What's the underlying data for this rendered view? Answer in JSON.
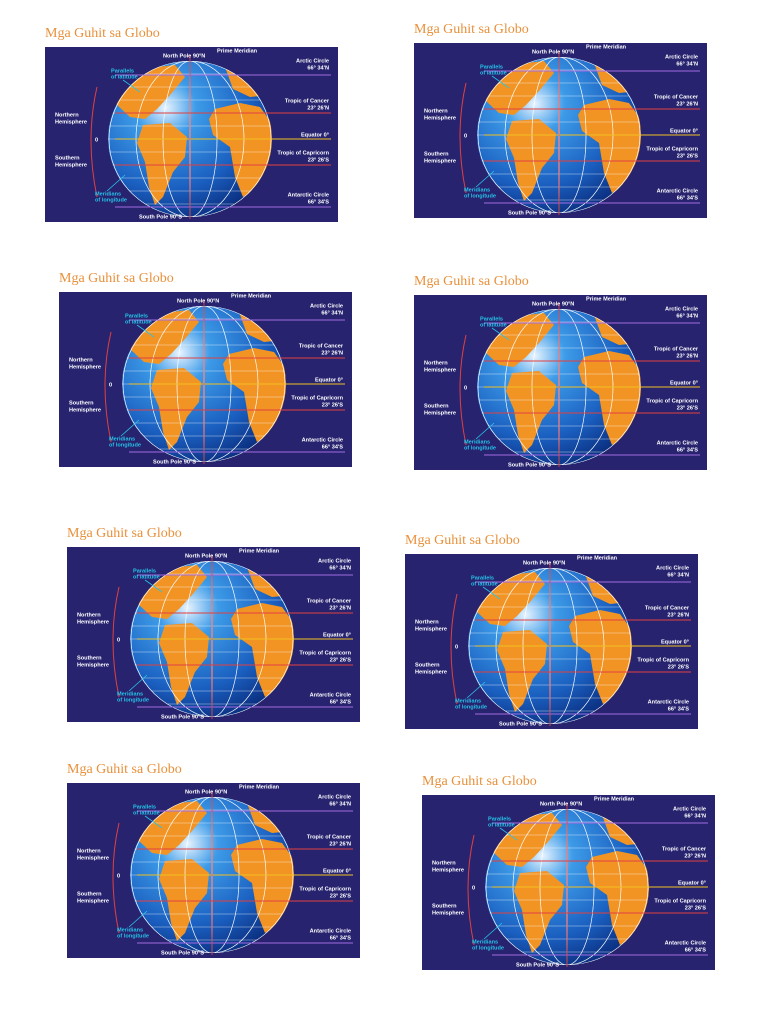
{
  "cards": [
    {
      "title": "Mga Guhit sa Globo",
      "labels": {
        "np": "North Pole 90°N",
        "pm": "Prime Meridian",
        "ac": "Arctic Circle",
        "acv": "66° 34'N",
        "par1": "Parallels",
        "par2": "of latitude",
        "tc": "Tropic of Cancer",
        "tcv": "23° 26'N",
        "nh1": "Northern",
        "nh2": "Hemisphere",
        "zero": "0",
        "eq": "Equator 0°",
        "sh1": "Southern",
        "sh2": "Hemisphere",
        "tcp": "Tropic of Capricorn",
        "tcpv": "23° 26'S",
        "mer1": "Meridians",
        "mer2": "of longitude",
        "anc": "Antarctic Circle",
        "ancv": "66° 34'S",
        "sp": "South Pole 90°S"
      }
    },
    {
      "title": "Mga Guhit sa Globo",
      "labels": {
        "np": "North Pole 90°N",
        "pm": "Prime Meridian",
        "ac": "Arctic Circle",
        "acv": "66° 34'N",
        "par1": "Parallels",
        "par2": "of latitude",
        "tc": "Tropic of Cancer",
        "tcv": "23° 26'N",
        "nh1": "Northern",
        "nh2": "Hemisphere",
        "zero": "0",
        "eq": "Equator 0°",
        "sh1": "Southern",
        "sh2": "Hemisphere",
        "tcp": "Tropic of Capricorn",
        "tcpv": "23° 26'S",
        "mer1": "Meridians",
        "mer2": "of longitude",
        "anc": "Antarctic Circle",
        "ancv": "66° 34'S",
        "sp": "South Pole 90°S"
      }
    },
    {
      "title": "Mga Guhit sa Globo",
      "labels": {
        "np": "North Pole 90°N",
        "pm": "Prime Meridian",
        "ac": "Arctic Circle",
        "acv": "66° 34'N",
        "par1": "Parallels",
        "par2": "of latitude",
        "tc": "Tropic of Cancer",
        "tcv": "23° 26'N",
        "nh1": "Northern",
        "nh2": "Hemisphere",
        "zero": "0",
        "eq": "Equator 0°",
        "sh1": "Southern",
        "sh2": "Hemisphere",
        "tcp": "Tropic of Capricorn",
        "tcpv": "23° 26'S",
        "mer1": "Meridians",
        "mer2": "of longitude",
        "anc": "Antarctic Circle",
        "ancv": "66° 34'S",
        "sp": "South Pole 90°S"
      }
    },
    {
      "title": "Mga Guhit sa Globo",
      "labels": {
        "np": "North Pole 90°N",
        "pm": "Prime Meridian",
        "ac": "Arctic Circle",
        "acv": "66° 34'N",
        "par1": "Parallels",
        "par2": "of latitude",
        "tc": "Tropic of Cancer",
        "tcv": "23° 26'N",
        "nh1": "Northern",
        "nh2": "Hemisphere",
        "zero": "0",
        "eq": "Equator 0°",
        "sh1": "Southern",
        "sh2": "Hemisphere",
        "tcp": "Tropic of Capricorn",
        "tcpv": "23° 26'S",
        "mer1": "Meridians",
        "mer2": "of longitude",
        "anc": "Antarctic Circle",
        "ancv": "66° 34'S",
        "sp": "South Pole 90°S"
      }
    },
    {
      "title": "Mga Guhit sa Globo",
      "labels": {
        "np": "North Pole 90°N",
        "pm": "Prime Meridian",
        "ac": "Arctic Circle",
        "acv": "66° 34'N",
        "par1": "Parallels",
        "par2": "of latitude",
        "tc": "Tropic of Cancer",
        "tcv": "23° 26'N",
        "nh1": "Northern",
        "nh2": "Hemisphere",
        "zero": "0",
        "eq": "Equator 0°",
        "sh1": "Southern",
        "sh2": "Hemisphere",
        "tcp": "Tropic of Capricorn",
        "tcpv": "23° 26'S",
        "mer1": "Meridians",
        "mer2": "of longitude",
        "anc": "Antarctic Circle",
        "ancv": "66° 34'S",
        "sp": "South Pole 90°S"
      }
    },
    {
      "title": "Mga Guhit sa Globo",
      "labels": {
        "np": "North Pole 90°N",
        "pm": "Prime Meridian",
        "ac": "Arctic Circle",
        "acv": "66° 34'N",
        "par1": "Parallels",
        "par2": "of latitude",
        "tc": "Tropic of Cancer",
        "tcv": "23° 26'N",
        "nh1": "Northern",
        "nh2": "Hemisphere",
        "zero": "0",
        "eq": "Equator 0°",
        "sh1": "Southern",
        "sh2": "Hemisphere",
        "tcp": "Tropic of Capricorn",
        "tcpv": "23° 26'S",
        "mer1": "Meridians",
        "mer2": "of longitude",
        "anc": "Antarctic Circle",
        "ancv": "66° 34'S",
        "sp": "South Pole 90°S"
      }
    },
    {
      "title": "Mga Guhit sa Globo",
      "labels": {
        "np": "North Pole 90°N",
        "pm": "Prime Meridian",
        "ac": "Arctic Circle",
        "acv": "66° 34'N",
        "par1": "Parallels",
        "par2": "of latitude",
        "tc": "Tropic of Cancer",
        "tcv": "23° 26'N",
        "nh1": "Northern",
        "nh2": "Hemisphere",
        "zero": "0",
        "eq": "Equator 0°",
        "sh1": "Southern",
        "sh2": "Hemisphere",
        "tcp": "Tropic of Capricorn",
        "tcpv": "23° 26'S",
        "mer1": "Meridians",
        "mer2": "of longitude",
        "anc": "Antarctic Circle",
        "ancv": "66° 34'S",
        "sp": "South Pole 90°S"
      }
    },
    {
      "title": "Mga Guhit sa Globo",
      "labels": {
        "np": "North Pole 90°N",
        "pm": "Prime Meridian",
        "ac": "Arctic Circle",
        "acv": "66° 34'N",
        "par1": "Parallels",
        "par2": "of latitude",
        "tc": "Tropic of Cancer",
        "tcv": "23° 26'N",
        "nh1": "Northern",
        "nh2": "Hemisphere",
        "zero": "0",
        "eq": "Equator 0°",
        "sh1": "Southern",
        "sh2": "Hemisphere",
        "tcp": "Tropic of Capricorn",
        "tcpv": "23° 26'S",
        "mer1": "Meridians",
        "mer2": "of longitude",
        "anc": "Antarctic Circle",
        "ancv": "66° 34'S",
        "sp": "South Pole 90°S"
      }
    }
  ]
}
